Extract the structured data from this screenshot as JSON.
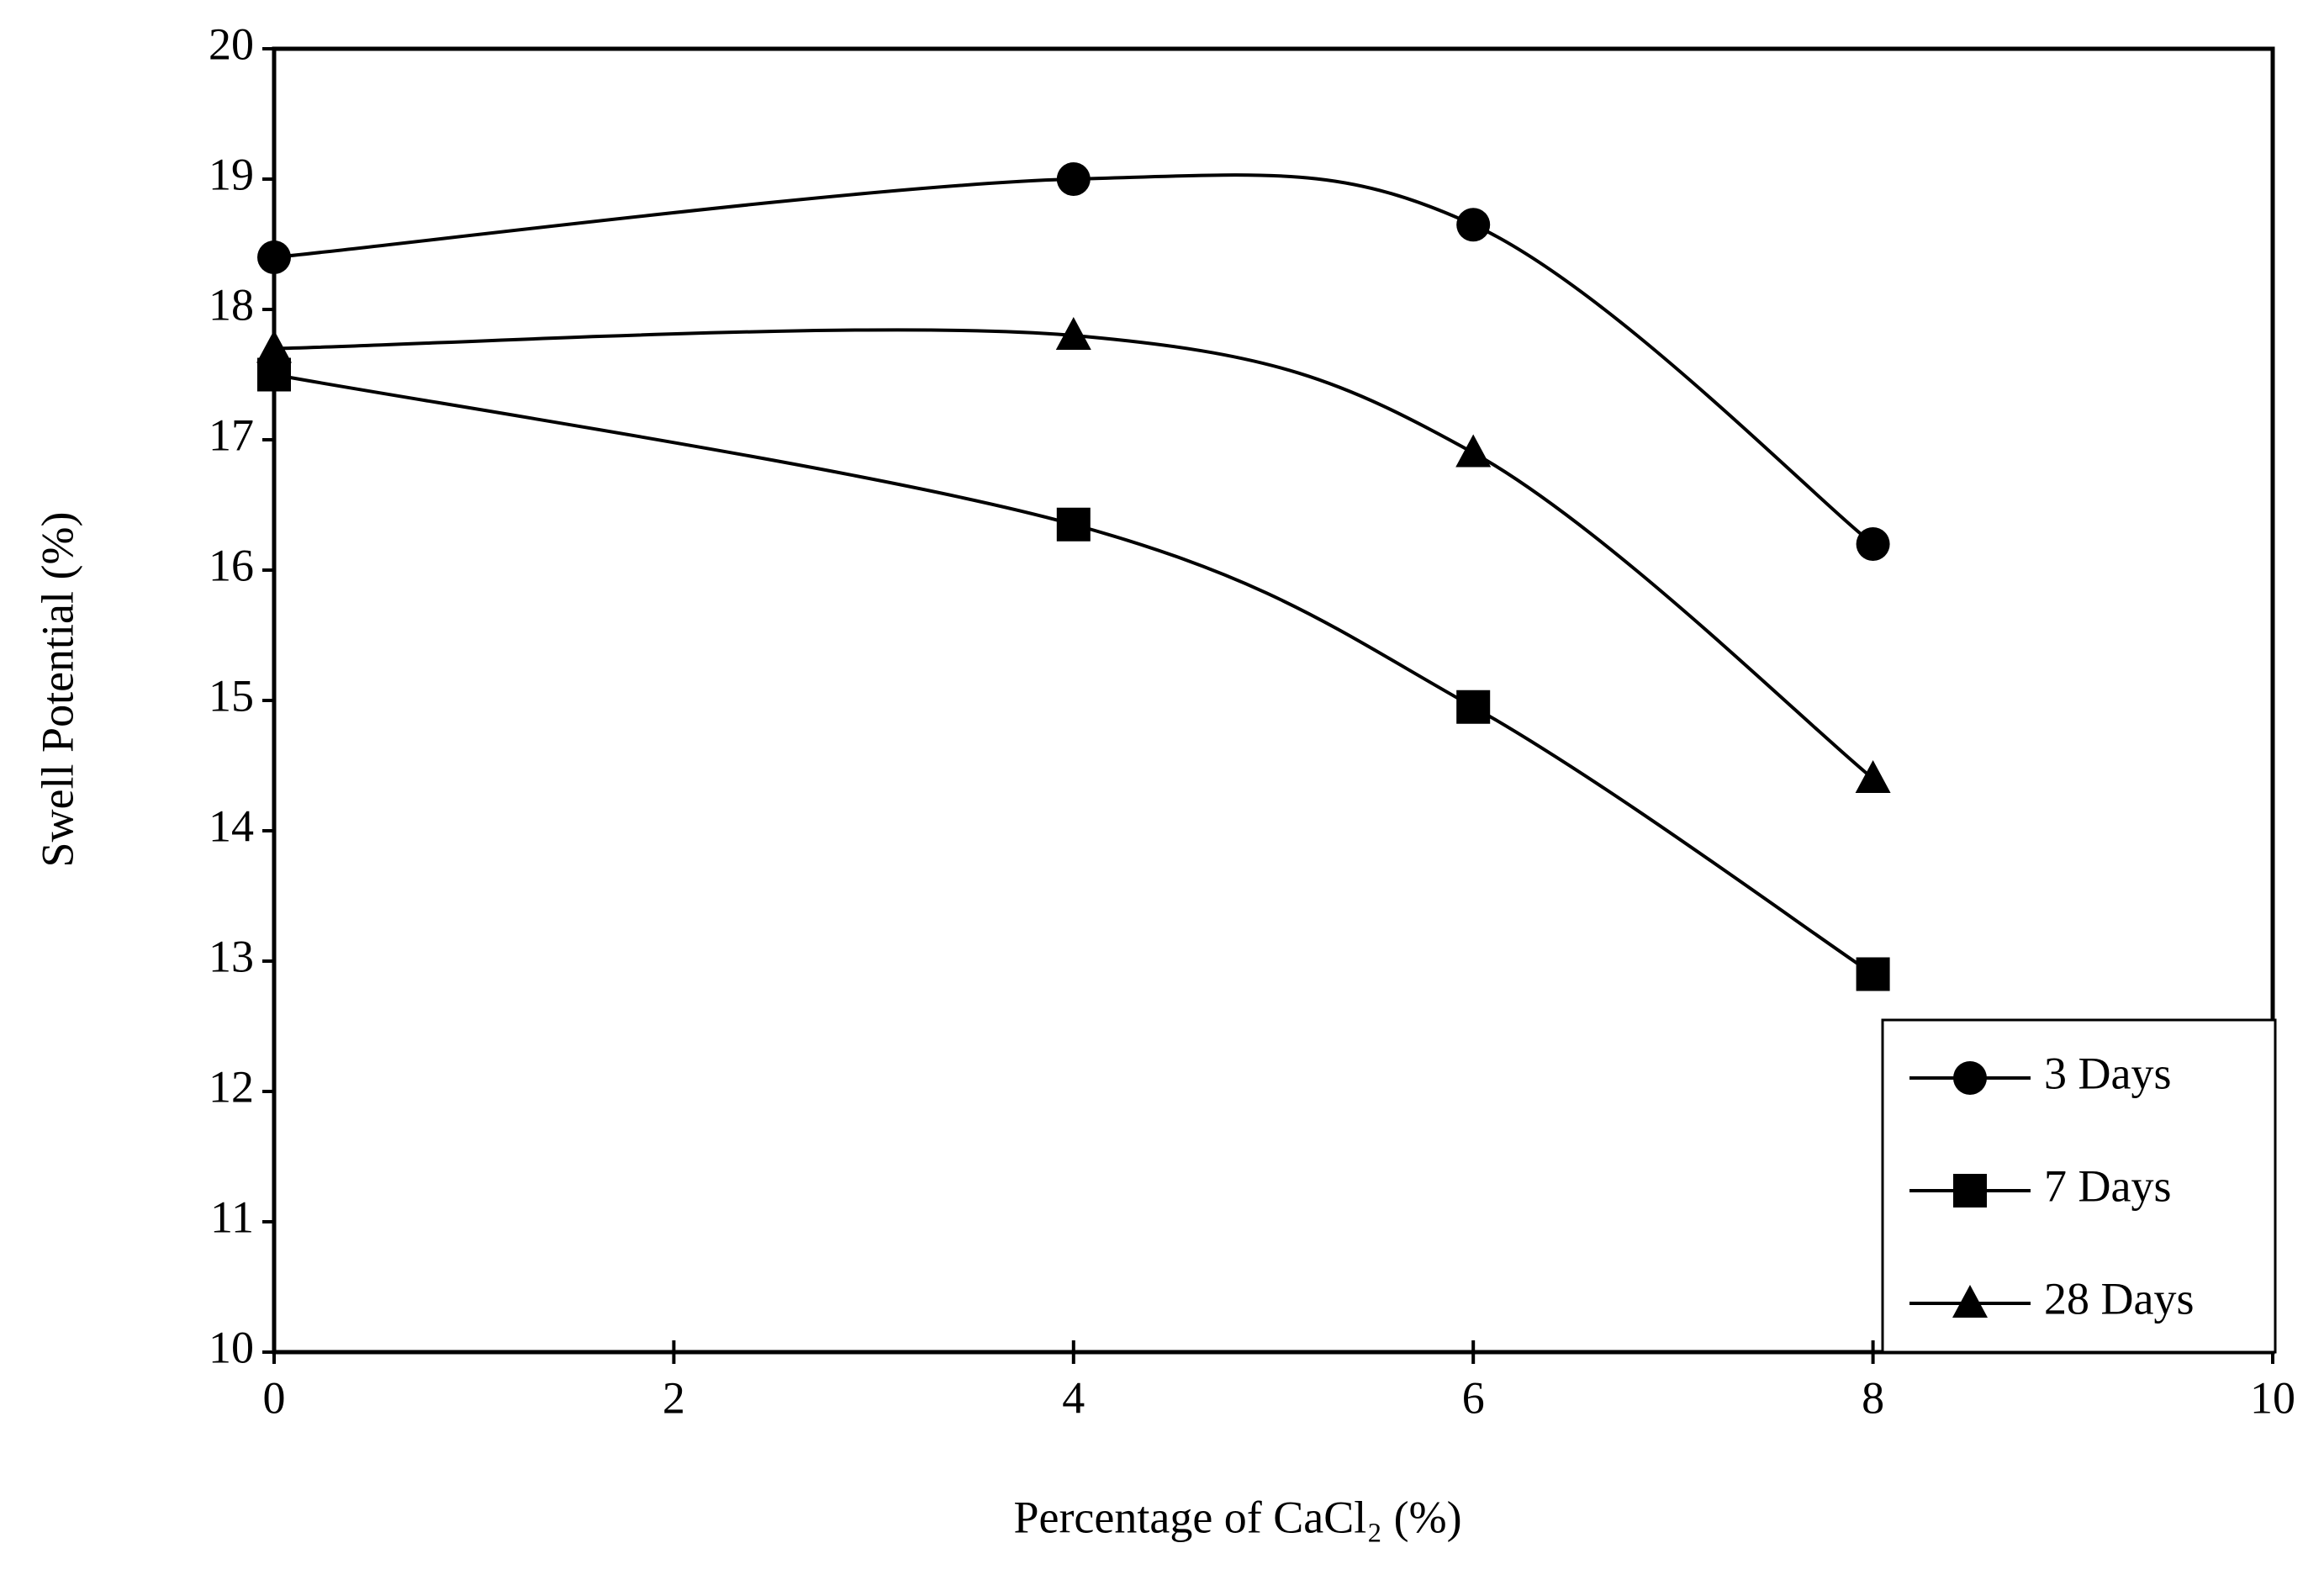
{
  "chart_data": {
    "type": "line",
    "x_label": "Percentage of CaCl₂ (%)",
    "y_label": "Swell Potential (%)",
    "x": [
      0,
      4,
      6,
      8
    ],
    "series": [
      {
        "name": "3 Days",
        "color": "#000000",
        "marker": "circle",
        "values": [
          18.4,
          19.0,
          18.65,
          16.2
        ]
      },
      {
        "name": "7 Days",
        "color": "#000000",
        "marker": "square",
        "values": [
          17.5,
          16.35,
          14.95,
          12.9
        ]
      },
      {
        "name": "28 Days",
        "color": "#000000",
        "marker": "triangle",
        "values": [
          17.7,
          17.8,
          16.9,
          14.4
        ]
      }
    ],
    "xlim": [
      0,
      10
    ],
    "xticks": [
      0,
      2,
      4,
      6,
      8,
      10
    ],
    "ylim": [
      10,
      20
    ],
    "yticks": [
      10,
      11,
      12,
      13,
      14,
      15,
      16,
      17,
      18,
      19,
      20
    ],
    "smooth": true,
    "grid": false,
    "legend": "lower right"
  }
}
